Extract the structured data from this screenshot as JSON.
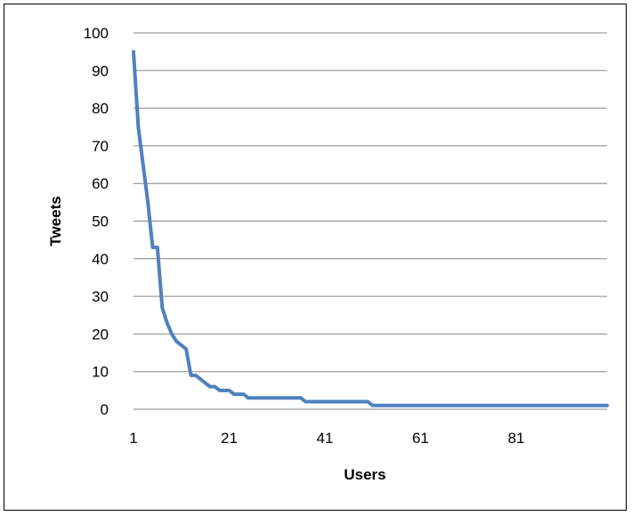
{
  "chart_data": {
    "type": "line",
    "title": "",
    "xlabel": "Users",
    "ylabel": "Tweets",
    "xlim": [
      1,
      100
    ],
    "ylim": [
      0,
      100
    ],
    "x_ticks": [
      1,
      21,
      41,
      61,
      81
    ],
    "y_ticks": [
      0,
      10,
      20,
      30,
      40,
      50,
      60,
      70,
      80,
      90,
      100
    ],
    "grid": "horizontal",
    "legend": "none",
    "series": [
      {
        "color": "#4F81BD",
        "values": [
          95,
          75,
          65,
          55,
          43,
          43,
          27,
          23,
          20,
          18,
          17,
          16,
          9,
          9,
          8,
          7,
          6,
          6,
          5,
          5,
          5,
          4,
          4,
          4,
          3,
          3,
          3,
          3,
          3,
          3,
          3,
          3,
          3,
          3,
          3,
          3,
          2,
          2,
          2,
          2,
          2,
          2,
          2,
          2,
          2,
          2,
          2,
          2,
          2,
          2,
          1,
          1,
          1,
          1,
          1,
          1,
          1,
          1,
          1,
          1,
          1,
          1,
          1,
          1,
          1,
          1,
          1,
          1,
          1,
          1,
          1,
          1,
          1,
          1,
          1,
          1,
          1,
          1,
          1,
          1,
          1,
          1,
          1,
          1,
          1,
          1,
          1,
          1,
          1,
          1,
          1,
          1,
          1,
          1,
          1,
          1,
          1,
          1,
          1,
          1
        ]
      }
    ]
  }
}
